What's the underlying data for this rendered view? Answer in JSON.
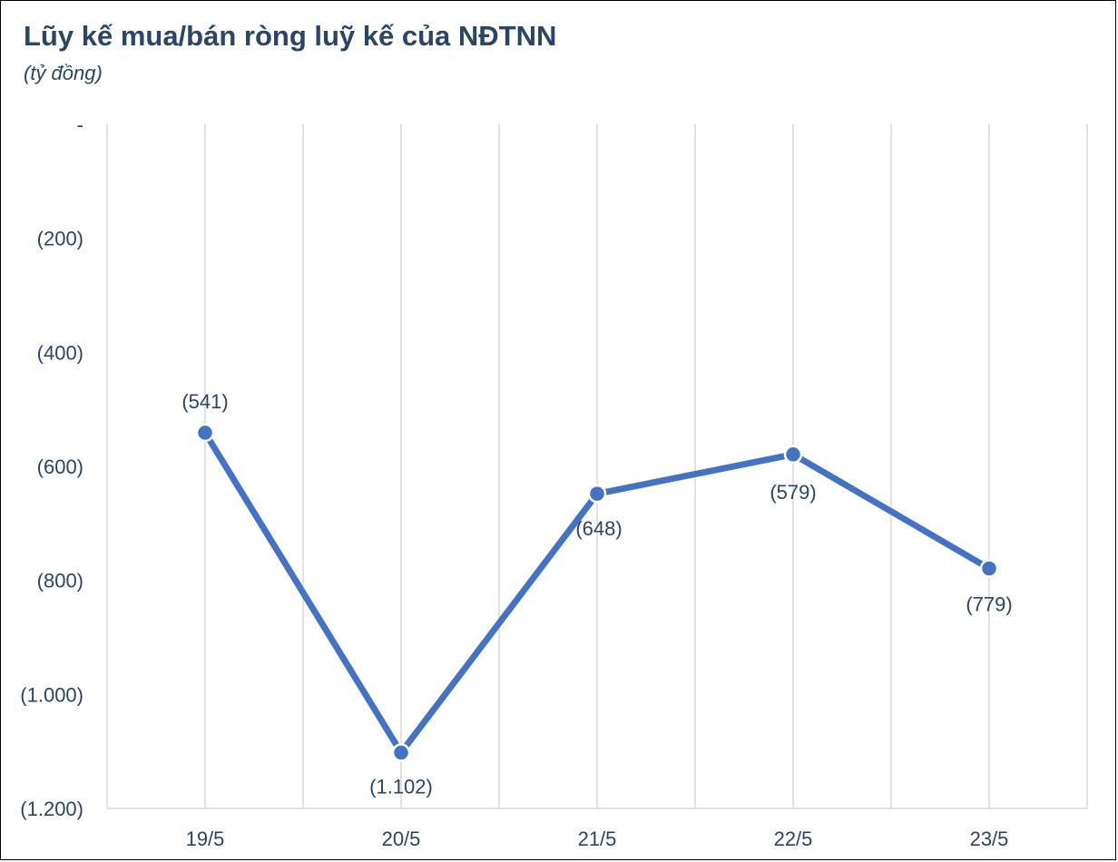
{
  "title": "Lũy kế mua/bán ròng luỹ kế của NĐTNN",
  "subtitle": "(tỷ đồng)",
  "colors": {
    "line": "#4472c4",
    "text": "#2a4565",
    "grid": "#d9d9d9"
  },
  "chart_data": {
    "type": "line",
    "categories": [
      "19/5",
      "20/5",
      "21/5",
      "22/5",
      "23/5"
    ],
    "series": [
      {
        "values": [
          -541,
          -1102,
          -648,
          -579,
          -779
        ],
        "labels": [
          "(541)",
          "(1.102)",
          "(648)",
          "(579)",
          "(779)"
        ]
      }
    ],
    "ylim": [
      -1200,
      0
    ],
    "yticks": [
      0,
      -200,
      -400,
      -600,
      -800,
      -1000,
      -1200
    ],
    "ytick_labels": [
      "-",
      "(200)",
      "(400)",
      "(600)",
      "(800)",
      "(1.000)",
      "(1.200)"
    ],
    "grid": "vertical",
    "legend": "none"
  }
}
